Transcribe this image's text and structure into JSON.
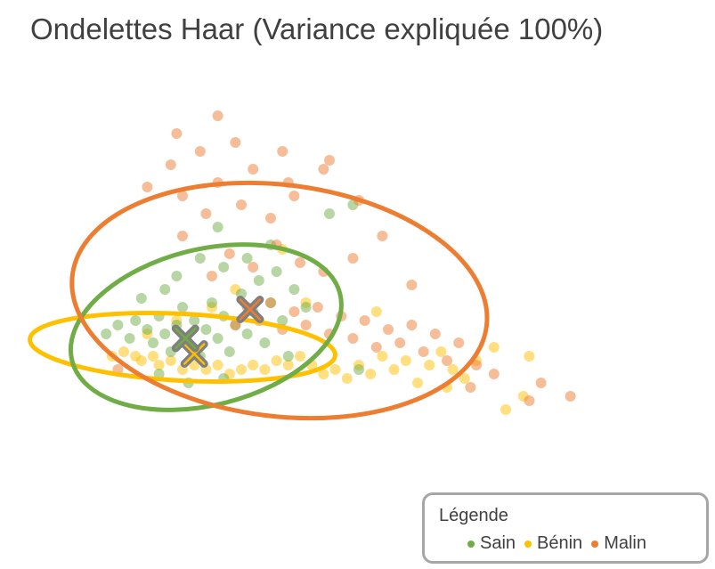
{
  "chart_data": {
    "type": "scatter",
    "title": "Ondelettes Haar (Variance expliquée 100%)",
    "xlabel": "",
    "ylabel": "",
    "xlim": [
      -4,
      6
    ],
    "ylim": [
      -3.5,
      5.5
    ],
    "grid": false,
    "axes_visible": false,
    "legend": {
      "title": "Légende",
      "position": "bottom-right",
      "entries": [
        {
          "name": "Sain",
          "color": "#70ad47"
        },
        {
          "name": "Bénin",
          "color": "#ffc000"
        },
        {
          "name": "Malin",
          "color": "#ed7d31"
        }
      ]
    },
    "series": [
      {
        "name": "Bénin",
        "color": "#ffc000",
        "centroid": [
          -1.3,
          -0.25
        ],
        "ellipse": {
          "cx": -1.5,
          "cy": -0.1,
          "rx": 2.6,
          "ry": 0.75,
          "angle": 3
        },
        "points": [
          [
            -2.7,
            -0.3
          ],
          [
            -2.5,
            -0.2
          ],
          [
            -2.3,
            -0.3
          ],
          [
            -2.2,
            -0.4
          ],
          [
            -2.0,
            -0.3
          ],
          [
            -1.9,
            -0.5
          ],
          [
            -1.7,
            -0.4
          ],
          [
            -1.5,
            -0.6
          ],
          [
            -1.3,
            -0.5
          ],
          [
            -1.1,
            -0.6
          ],
          [
            -0.9,
            -0.5
          ],
          [
            -0.7,
            -0.7
          ],
          [
            -0.5,
            -0.6
          ],
          [
            -0.3,
            -0.5
          ],
          [
            -0.1,
            -0.6
          ],
          [
            0.1,
            -0.4
          ],
          [
            0.3,
            -0.5
          ],
          [
            0.5,
            -0.3
          ],
          [
            0.7,
            -0.5
          ],
          [
            0.9,
            -0.7
          ],
          [
            1.1,
            -0.6
          ],
          [
            1.3,
            -0.8
          ],
          [
            1.5,
            -0.5
          ],
          [
            1.7,
            -0.7
          ],
          [
            1.9,
            -0.3
          ],
          [
            2.1,
            -0.6
          ],
          [
            2.3,
            -0.4
          ],
          [
            2.5,
            -0.9
          ],
          [
            2.7,
            -0.5
          ],
          [
            2.9,
            -0.2
          ],
          [
            3.1,
            -0.6
          ],
          [
            3.3,
            -0.8
          ],
          [
            3.5,
            -0.4
          ],
          [
            3.8,
            -0.1
          ],
          [
            4.4,
            -0.3
          ],
          [
            0.6,
            0.9
          ],
          [
            1.8,
            0.7
          ],
          [
            -0.6,
            1.2
          ],
          [
            0.2,
            2.1
          ],
          [
            -1.0,
            0.8
          ],
          [
            -1.6,
            0.5
          ],
          [
            -2.1,
            0.2
          ],
          [
            4.0,
            -1.5
          ],
          [
            4.3,
            -1.2
          ],
          [
            3.0,
            -1.0
          ]
        ]
      },
      {
        "name": "Sain",
        "color": "#70ad47",
        "centroid": [
          -1.45,
          0.1
        ],
        "ellipse": {
          "cx": -1.1,
          "cy": 0.35,
          "rx": 2.35,
          "ry": 1.75,
          "angle": -14
        },
        "points": [
          [
            -2.8,
            0.2
          ],
          [
            -2.6,
            0.4
          ],
          [
            -2.4,
            0.1
          ],
          [
            -2.3,
            0.5
          ],
          [
            -2.1,
            0.3
          ],
          [
            -2.0,
            0.0
          ],
          [
            -1.9,
            0.6
          ],
          [
            -1.8,
            0.2
          ],
          [
            -1.7,
            -0.2
          ],
          [
            -1.6,
            0.4
          ],
          [
            -1.5,
            0.8
          ],
          [
            -1.4,
            0.0
          ],
          [
            -1.3,
            0.5
          ],
          [
            -1.2,
            -0.3
          ],
          [
            -1.1,
            0.3
          ],
          [
            -1.0,
            0.9
          ],
          [
            -0.9,
            0.1
          ],
          [
            -0.8,
            0.6
          ],
          [
            -0.7,
            -0.2
          ],
          [
            -0.6,
            0.4
          ],
          [
            -0.5,
            1.1
          ],
          [
            -0.4,
            0.2
          ],
          [
            -0.3,
            0.7
          ],
          [
            -0.2,
            1.4
          ],
          [
            -0.1,
            0.0
          ],
          [
            0.0,
            0.9
          ],
          [
            0.1,
            1.6
          ],
          [
            0.2,
            0.5
          ],
          [
            0.4,
            1.2
          ],
          [
            0.6,
            0.8
          ],
          [
            -1.6,
            1.5
          ],
          [
            -1.2,
            1.9
          ],
          [
            -0.8,
            1.7
          ],
          [
            -0.4,
            1.9
          ],
          [
            0.0,
            2.2
          ],
          [
            -2.2,
            1.0
          ],
          [
            -1.8,
            1.2
          ],
          [
            -0.9,
            2.6
          ],
          [
            1.0,
            2.9
          ],
          [
            1.4,
            3.1
          ],
          [
            -1.9,
            -0.7
          ],
          [
            -1.4,
            -0.9
          ],
          [
            -0.8,
            -0.8
          ],
          [
            0.3,
            -0.3
          ],
          [
            1.5,
            -0.6
          ]
        ]
      },
      {
        "name": "Malin",
        "color": "#ed7d31",
        "centroid": [
          -0.35,
          0.75
        ],
        "ellipse": {
          "cx": 0.15,
          "cy": 0.95,
          "rx": 3.55,
          "ry": 2.6,
          "angle": 7
        },
        "points": [
          [
            -0.6,
            0.4
          ],
          [
            -0.4,
            0.8
          ],
          [
            -0.2,
            0.5
          ],
          [
            0.0,
            0.9
          ],
          [
            0.2,
            0.3
          ],
          [
            0.4,
            0.7
          ],
          [
            0.6,
            0.4
          ],
          [
            0.8,
            0.8
          ],
          [
            1.0,
            0.2
          ],
          [
            1.2,
            0.6
          ],
          [
            1.4,
            0.1
          ],
          [
            1.6,
            0.5
          ],
          [
            1.8,
            -0.1
          ],
          [
            2.0,
            0.3
          ],
          [
            2.2,
            0.0
          ],
          [
            2.4,
            0.4
          ],
          [
            2.6,
            -0.2
          ],
          [
            2.8,
            0.2
          ],
          [
            3.0,
            -0.4
          ],
          [
            3.2,
            0.0
          ],
          [
            3.5,
            -0.5
          ],
          [
            3.8,
            -0.7
          ],
          [
            -1.0,
            1.5
          ],
          [
            -0.7,
            2.0
          ],
          [
            -0.3,
            1.7
          ],
          [
            0.1,
            2.2
          ],
          [
            0.5,
            1.8
          ],
          [
            0.9,
            1.6
          ],
          [
            1.4,
            1.9
          ],
          [
            -1.5,
            2.4
          ],
          [
            -1.1,
            2.9
          ],
          [
            -0.5,
            3.1
          ],
          [
            0.0,
            2.8
          ],
          [
            0.4,
            3.3
          ],
          [
            -0.9,
            3.6
          ],
          [
            -0.3,
            3.9
          ],
          [
            0.3,
            3.6
          ],
          [
            0.9,
            3.9
          ],
          [
            1.5,
            3.2
          ],
          [
            -1.7,
            4.0
          ],
          [
            -1.2,
            4.3
          ],
          [
            -0.6,
            4.5
          ],
          [
            0.2,
            4.3
          ],
          [
            1.0,
            4.1
          ],
          [
            -0.9,
            5.1
          ],
          [
            -1.5,
            3.3
          ],
          [
            -2.1,
            3.5
          ],
          [
            1.9,
            2.4
          ],
          [
            2.4,
            1.3
          ],
          [
            -2.6,
            -0.6
          ],
          [
            4.4,
            -1.3
          ],
          [
            4.6,
            -0.9
          ],
          [
            3.4,
            -1.0
          ],
          [
            5.1,
            -1.2
          ],
          [
            -1.6,
            4.7
          ]
        ]
      }
    ]
  }
}
